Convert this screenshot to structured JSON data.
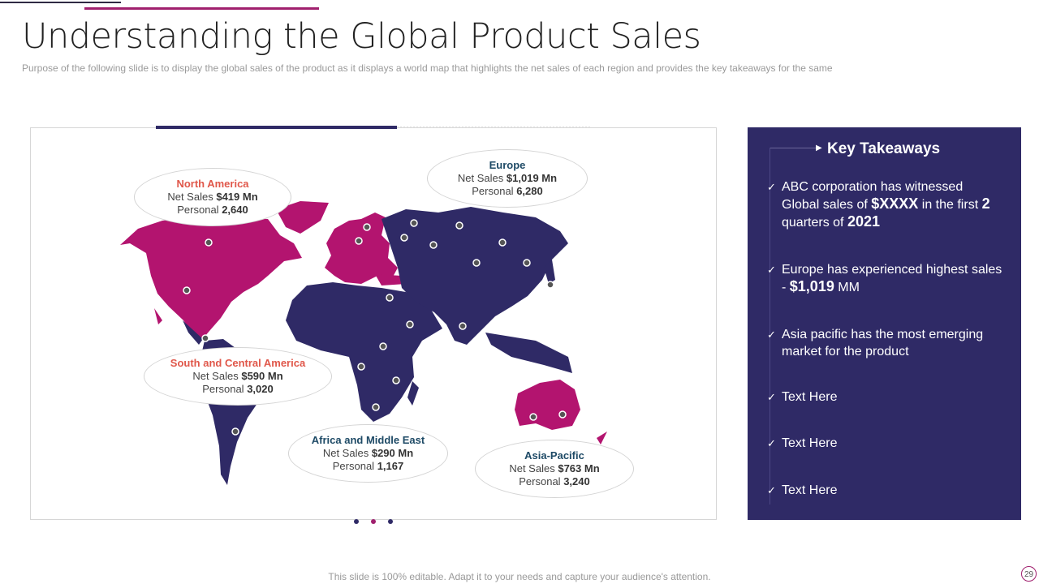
{
  "header": {
    "title": "Understanding the Global Product Sales",
    "subtitle": "Purpose of the following slide is to display the global sales of the product as it displays a world map that highlights the net sales of each region and provides  the key takeaways for the same"
  },
  "colors": {
    "navy": "#2f2a66",
    "magenta": "#b3146f",
    "region_red": "#e0574a",
    "region_teal": "#1e4a66"
  },
  "regions": [
    {
      "name": "North America",
      "sales_label": "Net Sales",
      "sales": "$419 Mn",
      "personal_label": "Personal",
      "personal": "2,640"
    },
    {
      "name": "Europe",
      "sales_label": "Net Sales",
      "sales": "$1,019 Mn",
      "personal_label": "Personal",
      "personal": "6,280"
    },
    {
      "name": "South and Central America",
      "sales_label": "Net Sales",
      "sales": "$590 Mn",
      "personal_label": "Personal",
      "personal": "3,020"
    },
    {
      "name": "Africa and Middle East",
      "sales_label": "Net Sales",
      "sales": "$290 Mn",
      "personal_label": "Personal",
      "personal": "1,167"
    },
    {
      "name": "Asia-Pacific",
      "sales_label": "Net Sales",
      "sales": "$763 Mn",
      "personal_label": "Personal",
      "personal": "3,240"
    }
  ],
  "takeaways": {
    "title": "Key Takeaways",
    "items": [
      {
        "a": "ABC corporation has witnessed Global sales of ",
        "b": "$XXXX",
        "c": " in the first ",
        "d": "2",
        "e": " quarters of ",
        "f": "2021"
      },
      {
        "a": "Europe has experienced highest sales  - ",
        "b": "$1,019",
        "c": " MM"
      },
      {
        "a": "Asia pacific has the most emerging market for the product"
      },
      {
        "a": "Text Here"
      },
      {
        "a": "Text Here"
      },
      {
        "a": "Text Here"
      }
    ]
  },
  "footer": {
    "note": "This slide is 100% editable. Adapt it to your needs and capture your audience's attention.",
    "page": "29"
  }
}
